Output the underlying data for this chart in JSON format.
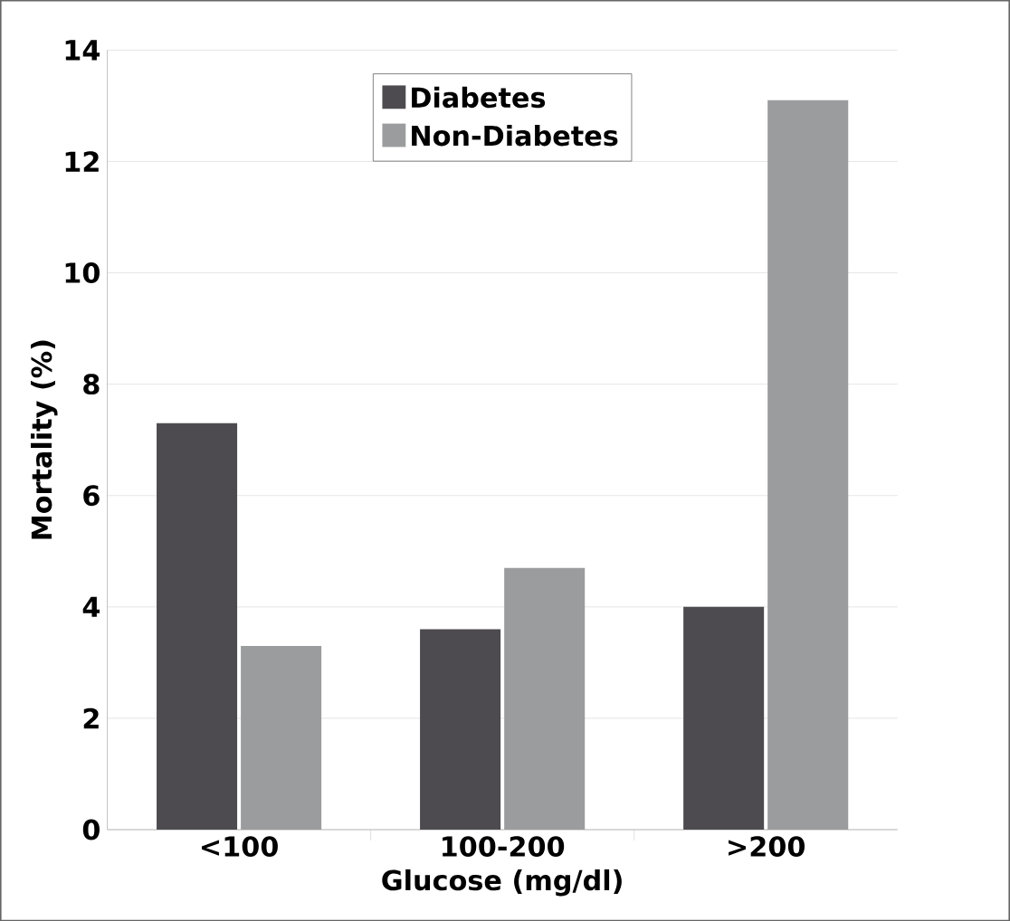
{
  "chart_data": {
    "type": "bar",
    "xlabel": "Glucose (mg/dl)",
    "ylabel": "Mortality (%)",
    "categories": [
      "<100",
      "100-200",
      ">200"
    ],
    "series": [
      {
        "name": "Diabetes",
        "color": "#4d4b4f",
        "values": [
          7.3,
          3.6,
          4.0
        ]
      },
      {
        "name": "Non-Diabetes",
        "color": "#9a9c9d",
        "values": [
          3.3,
          4.7,
          13.1
        ]
      }
    ],
    "ylim": [
      0,
      14
    ],
    "yticks": [
      0,
      2,
      4,
      6,
      8,
      10,
      12,
      14
    ],
    "grid": "y",
    "legend": "top"
  }
}
